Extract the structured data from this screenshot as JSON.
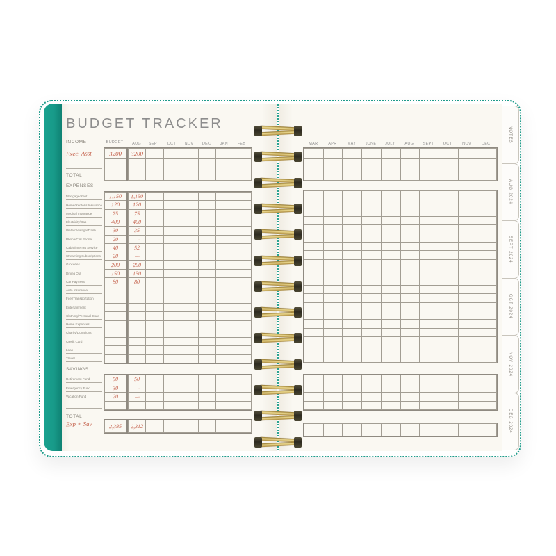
{
  "palette": {
    "teal": "#189a89",
    "page": "#faf8f2",
    "handwriting": "#c4604b",
    "coil_gold": "#c9a44e",
    "grid_line": "#a29d93",
    "text_gray": "#8d8d8d"
  },
  "tabs": [
    {
      "label": "NOTES"
    },
    {
      "label": "AUG 2024"
    },
    {
      "label": "SEPT 2024"
    },
    {
      "label": "OCT 2024"
    },
    {
      "label": "NOV 2024"
    },
    {
      "label": "DEC 2024"
    }
  ],
  "left_page": {
    "title": "BUDGET TRACKER",
    "months": [
      "AUG",
      "SEPT",
      "OCT",
      "NOV",
      "DEC",
      "JAN",
      "FEB"
    ],
    "income": {
      "label": "INCOME",
      "budget_header": "BUDGET",
      "rows": [
        {
          "label": "Exec. Asst",
          "budget": "3200",
          "aug": "3200"
        },
        {
          "label": "",
          "budget": "",
          "aug": ""
        }
      ],
      "total_label": "TOTAL"
    },
    "expenses": {
      "label": "EXPENSES",
      "rows": [
        {
          "label": "Mortgage/Rent",
          "budget": "1,150",
          "aug": "1,150"
        },
        {
          "label": "Home/Renter's Insurance",
          "budget": "120",
          "aug": "120"
        },
        {
          "label": "Medical Insurance",
          "budget": "75",
          "aug": "75"
        },
        {
          "label": "Electricity/Gas",
          "budget": "400",
          "aug": "400"
        },
        {
          "label": "Water/Sewage/Trash",
          "budget": "30",
          "aug": "35"
        },
        {
          "label": "Phone/Cell Phone",
          "budget": "20",
          "aug": "—"
        },
        {
          "label": "Cable/Internet Service",
          "budget": "40",
          "aug": "52"
        },
        {
          "label": "Streaming Subscriptions",
          "budget": "20",
          "aug": "—"
        },
        {
          "label": "Groceries",
          "budget": "200",
          "aug": "200"
        },
        {
          "label": "Dining Out",
          "budget": "150",
          "aug": "150"
        },
        {
          "label": "Car Payment",
          "budget": "80",
          "aug": "80"
        },
        {
          "label": "Auto Insurance",
          "budget": "",
          "aug": ""
        },
        {
          "label": "Fuel/Transportation",
          "budget": "",
          "aug": ""
        },
        {
          "label": "Entertainment",
          "budget": "",
          "aug": ""
        },
        {
          "label": "Clothing/Personal Care",
          "budget": "",
          "aug": ""
        },
        {
          "label": "Home Expenses",
          "budget": "",
          "aug": ""
        },
        {
          "label": "Charity/Donations",
          "budget": "",
          "aug": ""
        },
        {
          "label": "Credit Card",
          "budget": "",
          "aug": ""
        },
        {
          "label": "Loan",
          "budget": "",
          "aug": ""
        },
        {
          "label": "Travel",
          "budget": "",
          "aug": ""
        }
      ]
    },
    "savings": {
      "label": "SAVINGS",
      "rows": [
        {
          "label": "Retirement Fund",
          "budget": "50",
          "aug": "50"
        },
        {
          "label": "Emergency Fund",
          "budget": "30",
          "aug": "—"
        },
        {
          "label": "Vacation Fund",
          "budget": "20",
          "aug": "—"
        },
        {
          "label": "",
          "budget": "",
          "aug": ""
        }
      ]
    },
    "total": {
      "label": "TOTAL",
      "handwritten_label": "Exp + Sav",
      "budget": "2,385",
      "aug": "2,312"
    }
  },
  "right_page": {
    "months": [
      "MAR",
      "APR",
      "MAY",
      "JUNE",
      "JULY",
      "AUG",
      "SEPT",
      "OCT",
      "NOV",
      "DEC"
    ]
  }
}
